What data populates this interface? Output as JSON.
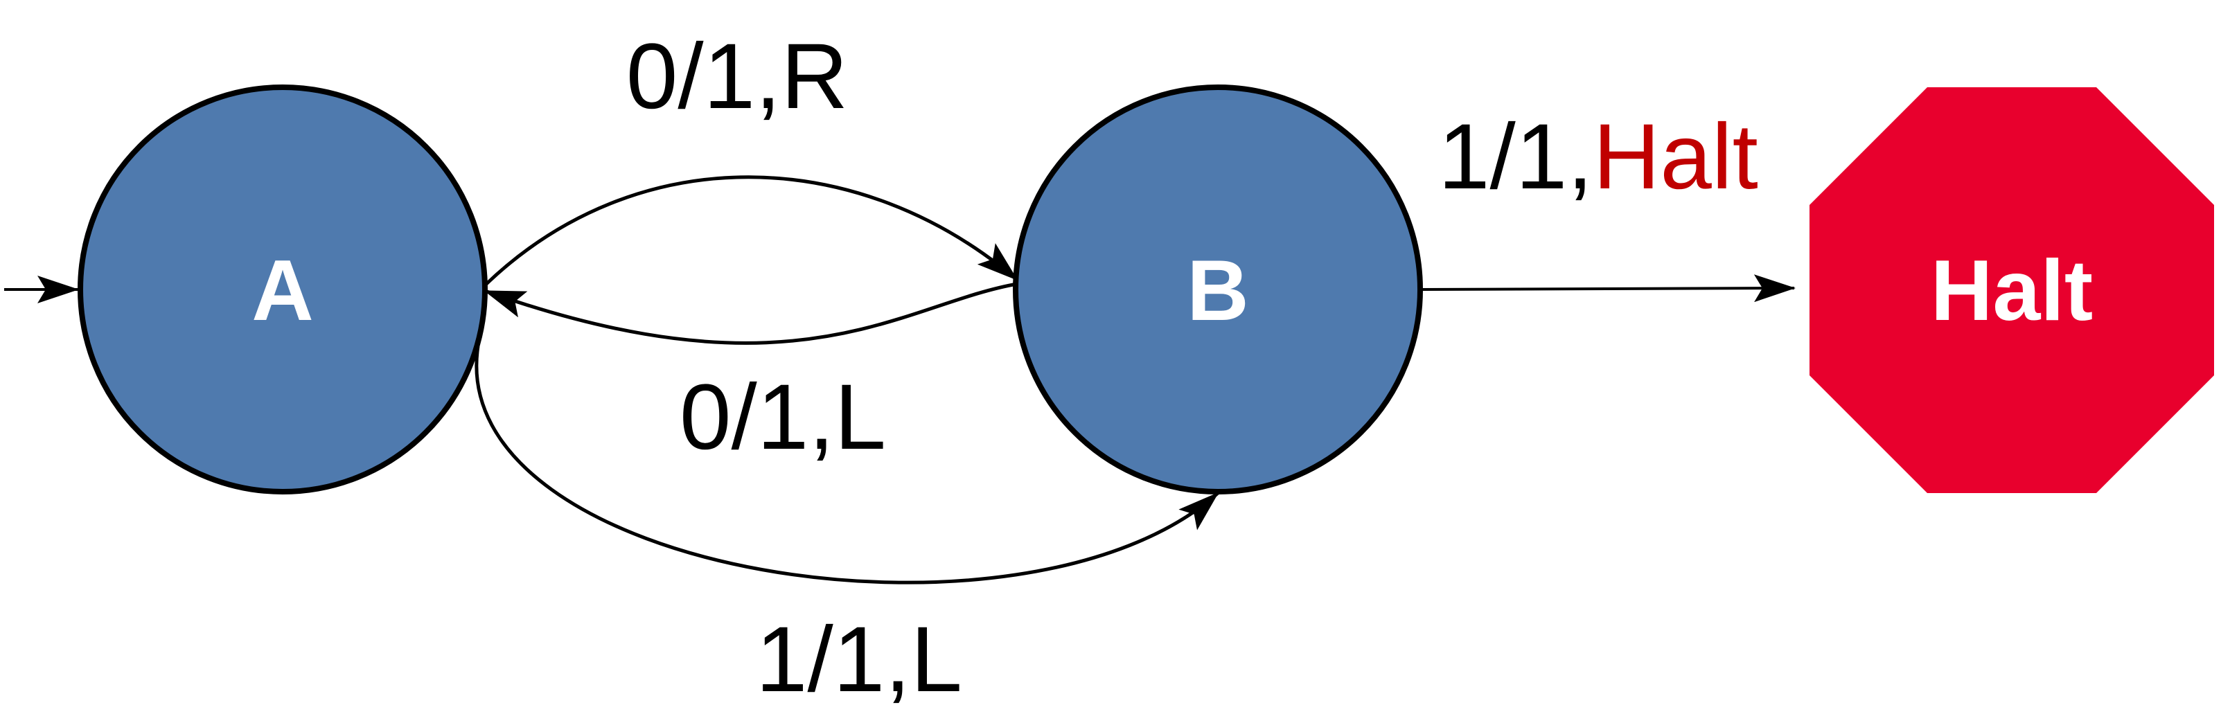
{
  "colors": {
    "state_fill": "#4f7aae",
    "state_stroke": "#000000",
    "halt_fill": "#e8002d",
    "halt_text": "#c00000",
    "edge_color": "#000000",
    "state_text": "#ffffff"
  },
  "states": {
    "a": {
      "label": "A"
    },
    "b": {
      "label": "B"
    },
    "halt": {
      "label": "Halt",
      "shape": "octagon"
    }
  },
  "transitions": {
    "a_to_b": {
      "prefix": "0/1,",
      "suffix": "R"
    },
    "b_to_a": {
      "prefix": "0/1,",
      "suffix": "L"
    },
    "a_to_b_lower": {
      "prefix": "1/1,",
      "suffix": "L"
    },
    "b_to_halt": {
      "prefix": "1/1,",
      "suffix": "Halt"
    }
  }
}
